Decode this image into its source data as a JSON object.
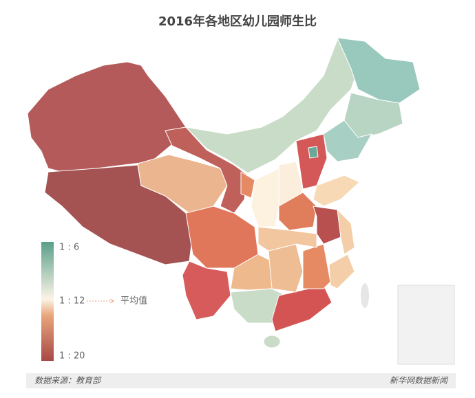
{
  "header": {
    "title": "2016年各地区幼儿园师生比"
  },
  "legend": {
    "labels": [
      "1 : 6",
      "1 : 12",
      "1 : 20"
    ],
    "average_label": "平均值"
  },
  "footer": {
    "source": "数据来源：教育部",
    "credit": "新华网数据新闻"
  }
}
